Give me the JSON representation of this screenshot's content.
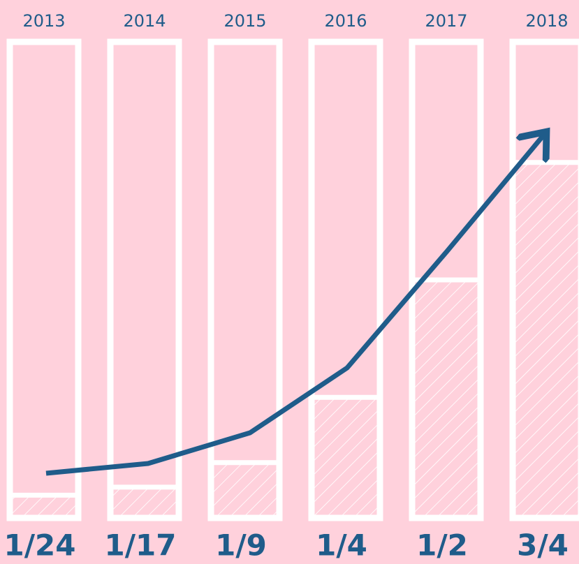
{
  "chart_data": {
    "type": "bar",
    "categories": [
      "2013",
      "2014",
      "2015",
      "2016",
      "2017",
      "2018"
    ],
    "values": [
      0.0417,
      0.0588,
      0.1111,
      0.25,
      0.5,
      0.75
    ],
    "value_labels": [
      "1/24",
      "1/17",
      "1/9",
      "1/4",
      "1/2",
      "3/4"
    ],
    "ylim": [
      0,
      1
    ],
    "color": "#ffffff"
  }
}
